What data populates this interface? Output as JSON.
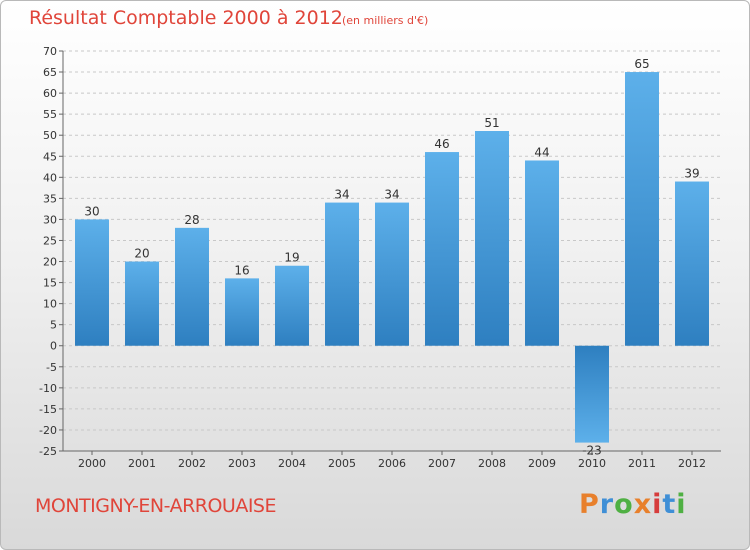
{
  "header": {
    "title": "Résultat Comptable 2000 à 2012",
    "subtitle": "(en milliers d'€)"
  },
  "footer": {
    "place": "MONTIGNY-EN-ARROUAISE",
    "logo_text": "Proxiti",
    "logo_colors": [
      "#e8802c",
      "#3f8fd6",
      "#4fb043",
      "#e8802c",
      "#d63c3c",
      "#3f8fd6",
      "#4fb043"
    ]
  },
  "colors": {
    "bar_top": "#5db0ea",
    "bar_bottom": "#2e7fc0",
    "grid": "#c8c8c8",
    "title": "#e0453a"
  },
  "chart_data": {
    "type": "bar",
    "title": "Résultat Comptable 2000 à 2012",
    "subtitle": "(en milliers d'€)",
    "xlabel": "",
    "ylabel": "",
    "categories": [
      "2000",
      "2001",
      "2002",
      "2003",
      "2004",
      "2005",
      "2006",
      "2007",
      "2008",
      "2009",
      "2010",
      "2011",
      "2012"
    ],
    "values": [
      30,
      20,
      28,
      16,
      19,
      34,
      34,
      46,
      51,
      44,
      -23,
      65,
      39
    ],
    "ylim": [
      -25,
      70
    ],
    "yticks": [
      70,
      65,
      60,
      55,
      50,
      45,
      40,
      35,
      30,
      25,
      20,
      15,
      10,
      5,
      0,
      -5,
      -10,
      -15,
      -20,
      -25
    ],
    "grid": true,
    "legend": "none"
  }
}
